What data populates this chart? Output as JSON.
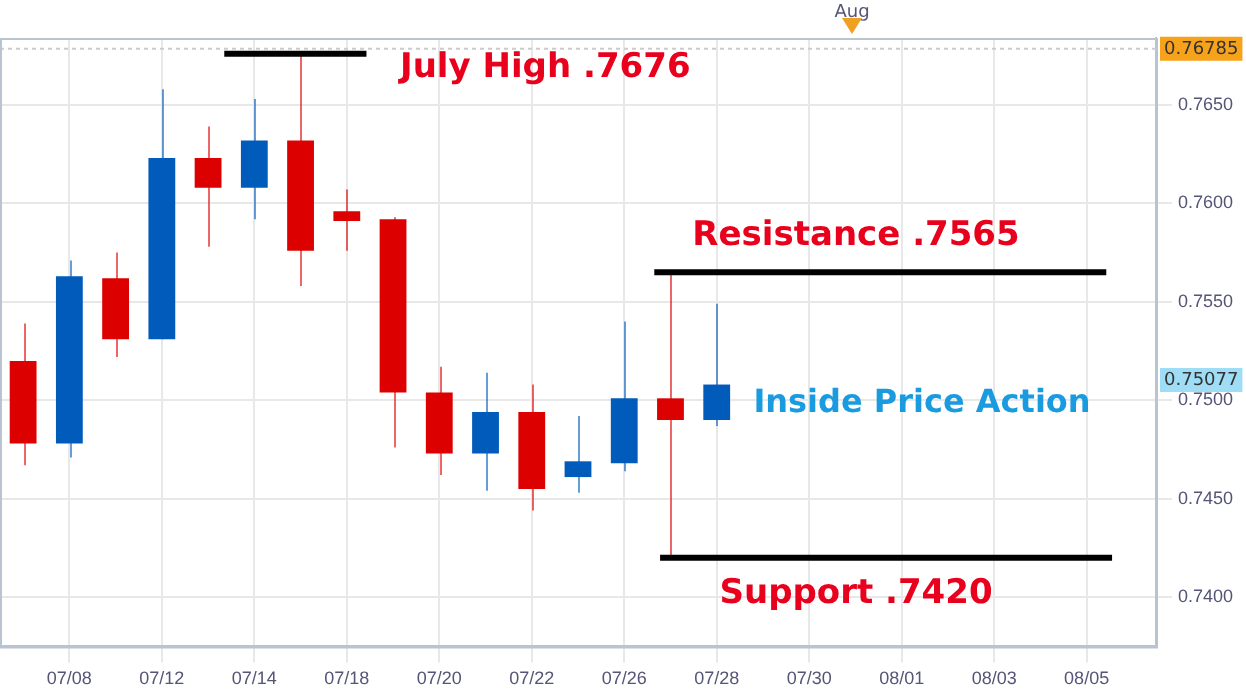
{
  "chart_data": {
    "type": "candlestick",
    "categories": [
      null,
      "07/08",
      null,
      "07/12",
      null,
      "07/14",
      null,
      "07/18",
      null,
      "07/20",
      null,
      "07/22",
      null,
      "07/26",
      null,
      "07/28",
      null,
      "07/30",
      null,
      "08/01",
      null,
      "08/03",
      null,
      "08/05",
      null
    ],
    "ohlc": [
      [
        0.752,
        0.7539,
        0.7467,
        0.7478
      ],
      [
        0.7478,
        0.7571,
        0.7471,
        0.7563
      ],
      [
        0.7562,
        0.7575,
        0.7522,
        0.7531
      ],
      [
        0.7531,
        0.7658,
        0.7531,
        0.7623
      ],
      [
        0.7623,
        0.7639,
        0.7578,
        0.7608
      ],
      [
        0.7608,
        0.7653,
        0.7592,
        0.7632
      ],
      [
        0.7632,
        0.7676,
        0.7558,
        0.7576
      ],
      [
        0.7596,
        0.7607,
        0.7576,
        0.7591
      ],
      [
        0.7592,
        0.7593,
        0.7476,
        0.7504
      ],
      [
        0.7504,
        0.7517,
        0.7462,
        0.7473
      ],
      [
        0.7473,
        0.7514,
        0.7454,
        0.7494
      ],
      [
        0.7494,
        0.7508,
        0.7444,
        0.7455
      ],
      [
        0.7461,
        0.7492,
        0.7453,
        0.7469
      ],
      [
        0.7468,
        0.754,
        0.7464,
        0.7501
      ],
      [
        0.7501,
        0.7565,
        0.742,
        0.749
      ],
      [
        0.749,
        0.7549,
        0.7487,
        0.7508
      ],
      null,
      null,
      null,
      null,
      null,
      null,
      null,
      null,
      null
    ],
    "colors": [
      "#dd0000",
      "#005bbb",
      "#dd0000",
      "#005bbb",
      "#dd0000",
      "#005bbb",
      "#dd0000",
      "#dd0000",
      "#dd0000",
      "#dd0000",
      "#005bbb",
      "#dd0000",
      "#005bbb",
      "#005bbb",
      "#dd0000",
      "#005bbb",
      null,
      null,
      null,
      null,
      null,
      null,
      null,
      null,
      null
    ],
    "ylim": [
      0.7375,
      0.7684
    ],
    "yticks": [
      {
        "value": 0.74,
        "label": "0.7400"
      },
      {
        "value": 0.745,
        "label": "0.7450"
      },
      {
        "value": 0.75,
        "label": "0.7500"
      },
      {
        "value": 0.755,
        "label": "0.7550"
      },
      {
        "value": 0.76,
        "label": "0.7600"
      },
      {
        "value": 0.765,
        "label": "0.7650"
      }
    ],
    "grid": true,
    "ref_lines": [
      {
        "axis": "y",
        "value": 0.76785,
        "label": "0.76785",
        "line_style": "dotted",
        "color": "#cccccc"
      },
      {
        "axis": "y",
        "value": 0.7676,
        "label": "July High .7676",
        "color": "#000000"
      },
      {
        "axis": "y",
        "value": 0.7565,
        "label": "Resistance .7565",
        "color": "#000000"
      },
      {
        "axis": "y",
        "value": 0.742,
        "label": "Support .7420",
        "color": "#000000"
      }
    ],
    "annotations": [
      "Inside Price Action",
      "Aug",
      "0.75077"
    ]
  }
}
